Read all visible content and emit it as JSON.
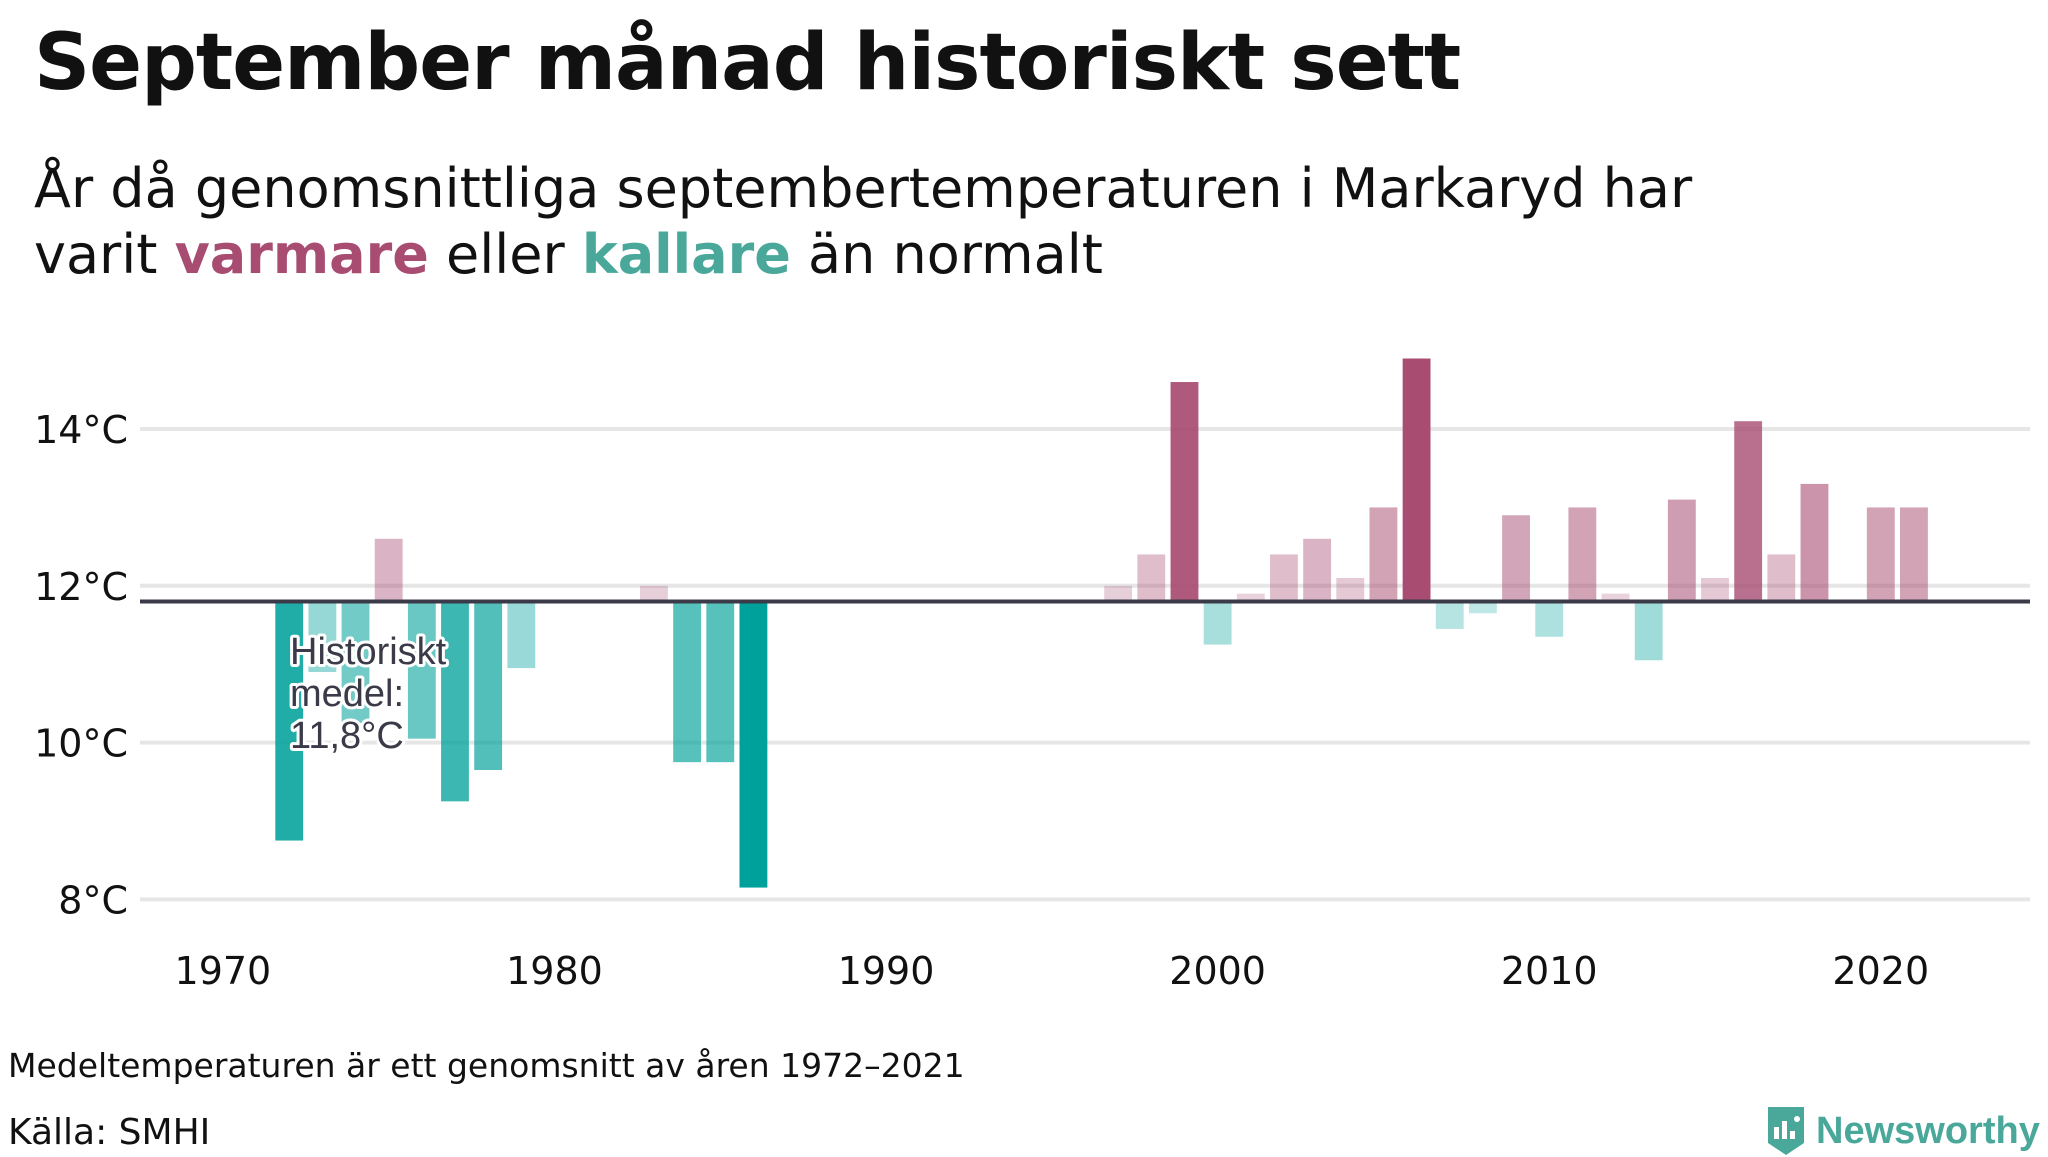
{
  "title": "September månad historiskt sett",
  "subtitle": {
    "line1": "År då genomsnittliga septembertemperaturen i Markaryd har",
    "line2_prefix": "varit ",
    "warm_word": "varmare",
    "middle": " eller ",
    "cold_word": "kallare",
    "suffix": " än normalt"
  },
  "footnote": "Medeltemperaturen är ett genomsnitt av åren 1972–2021",
  "source": "Källa: SMHI",
  "brand": "Newsworthy",
  "colors": {
    "warm": "#a84c72",
    "cold": "#00a19a",
    "mean_line": "#3a3a48",
    "grid": "#e6e6e6",
    "brand": "#4aa89b"
  },
  "chart_data": {
    "type": "bar",
    "title": "September månad historiskt sett",
    "xlabel": "",
    "ylabel": "",
    "ylim": [
      7.8,
      15.2
    ],
    "xlim": [
      1967.5,
      2024.5
    ],
    "yticks": [
      8,
      10,
      12,
      14
    ],
    "ytick_labels": [
      "8°C",
      "10°C",
      "12°C",
      "14°C"
    ],
    "xticks": [
      1970,
      1980,
      1990,
      2000,
      2010,
      2020
    ],
    "xtick_labels": [
      "1970",
      "1980",
      "1990",
      "2000",
      "2010",
      "2020"
    ],
    "baseline": 11.8,
    "baseline_label": [
      "Historiskt",
      "medel:",
      "11,8°C"
    ],
    "grid": true,
    "series": [
      {
        "name": "Septembertemperatur",
        "x": [
          1972,
          1973,
          1974,
          1975,
          1976,
          1977,
          1978,
          1979,
          1983,
          1984,
          1985,
          1986,
          1997,
          1998,
          1999,
          2000,
          2001,
          2002,
          2003,
          2004,
          2005,
          2006,
          2007,
          2008,
          2009,
          2010,
          2011,
          2012,
          2013,
          2014,
          2015,
          2016,
          2017,
          2018,
          2020,
          2021
        ],
        "values": [
          8.75,
          10.9,
          10.25,
          12.6,
          10.05,
          9.25,
          9.65,
          10.95,
          12.0,
          9.75,
          9.75,
          8.15,
          12.0,
          12.4,
          14.6,
          11.25,
          11.9,
          12.4,
          12.6,
          12.1,
          13.0,
          14.9,
          11.45,
          11.65,
          12.9,
          11.35,
          13.0,
          11.9,
          11.05,
          13.1,
          12.1,
          14.1,
          12.4,
          13.3,
          13.0,
          13.0
        ]
      }
    ]
  }
}
